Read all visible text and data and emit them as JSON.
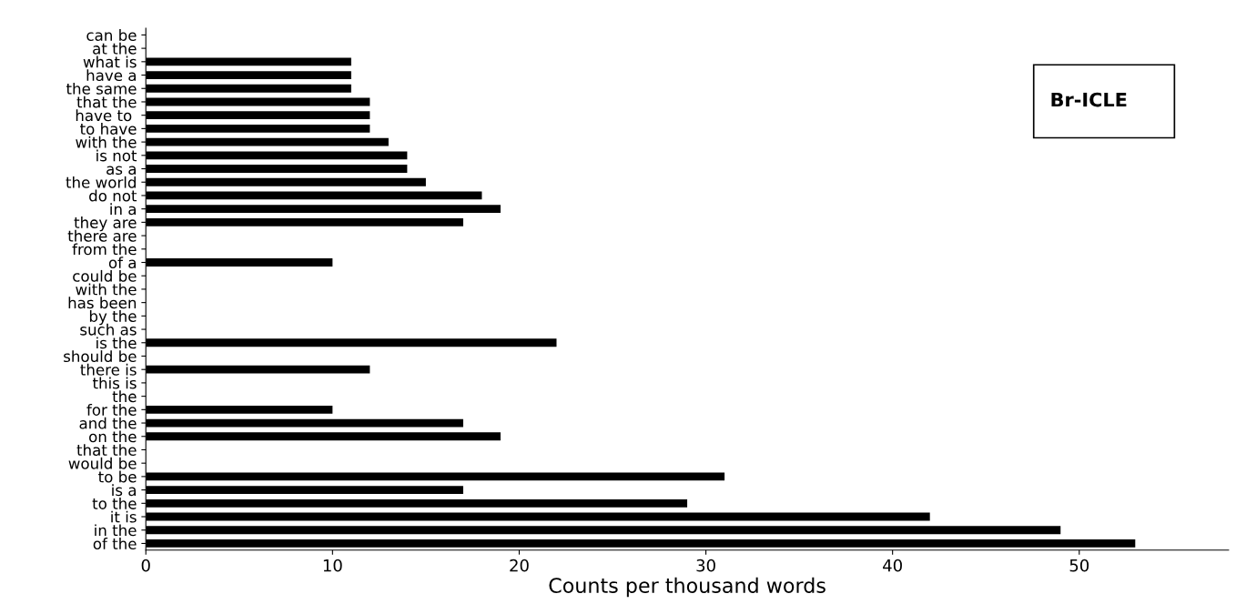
{
  "chart_data": {
    "type": "bar",
    "orientation": "horizontal",
    "xlabel": "Counts per thousand words",
    "categories": [
      "can be",
      "at the",
      "what is",
      "have a",
      "the same",
      "that the",
      "have to ",
      "to have",
      "with the",
      "is not",
      "as a",
      "the world",
      "do not",
      "in a",
      "they are",
      "there are",
      "from the",
      "of a",
      "could be",
      "with the",
      "has been",
      "by the",
      "such as",
      "is the",
      "should be",
      "there is",
      "this is",
      "the",
      "for the",
      "and the",
      "on the",
      "that the",
      "would be",
      "to be",
      "is a",
      "to the",
      "it is",
      "in the",
      "of the"
    ],
    "values": [
      null,
      null,
      11,
      11,
      11,
      12,
      12,
      12,
      13,
      14,
      14,
      15,
      18,
      19,
      17,
      null,
      null,
      10,
      null,
      null,
      null,
      null,
      null,
      22,
      null,
      12,
      null,
      null,
      10,
      17,
      19,
      null,
      null,
      31,
      17,
      29,
      42,
      49,
      53
    ],
    "color": "#000000",
    "xlim": [
      0,
      58
    ],
    "xticks": [
      0,
      10,
      20,
      30,
      40,
      50
    ],
    "grid": false,
    "annotations": [
      "Br-ICLE"
    ]
  }
}
